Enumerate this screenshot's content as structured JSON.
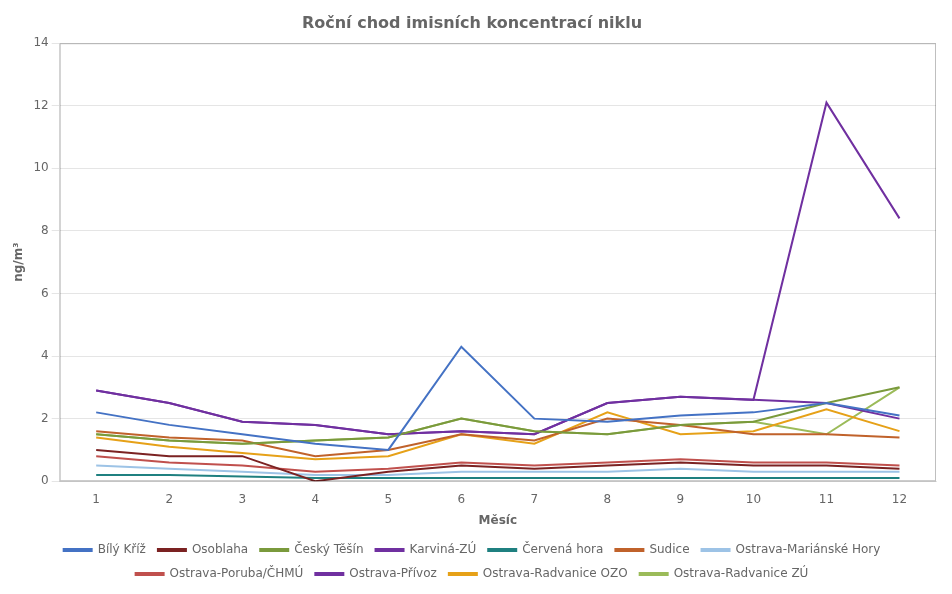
{
  "chart_data": {
    "type": "line",
    "title": "Roční chod imisních koncentrací niklu",
    "x_label": "Měsíc",
    "y_label": "ng/m³",
    "x": [
      1,
      2,
      3,
      4,
      5,
      6,
      7,
      8,
      9,
      10,
      11,
      12
    ],
    "xlim": [
      0.5,
      12.5
    ],
    "xticks": [
      1,
      2,
      3,
      4,
      5,
      6,
      7,
      8,
      9,
      10,
      11,
      12
    ],
    "ylim": [
      0,
      14
    ],
    "yticks": [
      0,
      2,
      4,
      6,
      8,
      10,
      12,
      14
    ],
    "grid": "y",
    "legend": "bottom",
    "series": [
      {
        "name": "Bílý Kříž",
        "color": "#4472c4",
        "values": [
          2.2,
          1.8,
          1.5,
          1.2,
          1.0,
          4.3,
          2.0,
          1.9,
          2.1,
          2.2,
          2.5,
          2.1
        ]
      },
      {
        "name": "Osoblaha",
        "color": "#7b2222",
        "values": [
          1.0,
          0.8,
          0.8,
          0.0,
          0.3,
          0.5,
          0.4,
          0.5,
          0.6,
          0.5,
          0.5,
          0.4
        ]
      },
      {
        "name": "Český Těšín",
        "color": "#7a9a3c",
        "values": [
          1.5,
          1.3,
          1.2,
          1.3,
          1.4,
          2.0,
          1.6,
          1.5,
          1.8,
          1.9,
          2.5,
          3.0
        ]
      },
      {
        "name": "Karviná-ZÚ",
        "color": "#7030a0",
        "values": [
          2.9,
          2.5,
          1.9,
          1.8,
          1.5,
          1.6,
          1.5,
          2.5,
          2.7,
          2.6,
          2.5,
          2.0
        ]
      },
      {
        "name": "Červená hora",
        "color": "#1f8080",
        "values": [
          0.2,
          0.2,
          0.15,
          0.1,
          0.1,
          0.1,
          0.1,
          0.1,
          0.1,
          0.1,
          0.1,
          0.1
        ]
      },
      {
        "name": "Sudice",
        "color": "#c0622b",
        "values": [
          1.6,
          1.4,
          1.3,
          0.8,
          1.0,
          1.5,
          1.3,
          2.0,
          1.8,
          1.5,
          1.5,
          1.4
        ]
      },
      {
        "name": "Ostrava-Mariánské Hory",
        "color": "#9dc3e6",
        "values": [
          0.5,
          0.4,
          0.3,
          0.2,
          0.2,
          0.3,
          0.3,
          0.3,
          0.4,
          0.3,
          0.3,
          0.3
        ]
      },
      {
        "name": "Ostrava-Poruba/ČHMÚ",
        "color": "#c0504d",
        "values": [
          0.8,
          0.6,
          0.5,
          0.3,
          0.4,
          0.6,
          0.5,
          0.6,
          0.7,
          0.6,
          0.6,
          0.5
        ]
      },
      {
        "name": "Ostrava-Přívoz",
        "color": "#7030a0",
        "values": [
          2.9,
          2.5,
          1.9,
          1.8,
          1.5,
          1.6,
          1.5,
          2.5,
          2.7,
          2.6,
          12.1,
          8.4
        ]
      },
      {
        "name": "Ostrava-Radvanice OZO",
        "color": "#e6a118",
        "values": [
          1.4,
          1.1,
          0.9,
          0.7,
          0.8,
          1.5,
          1.2,
          2.2,
          1.5,
          1.6,
          2.3,
          1.6
        ]
      },
      {
        "name": "Ostrava-Radvanice ZÚ",
        "color": "#9bbb59",
        "values": [
          1.5,
          1.3,
          1.2,
          1.3,
          1.4,
          2.0,
          1.6,
          1.5,
          1.8,
          1.9,
          1.5,
          3.0
        ]
      }
    ]
  }
}
